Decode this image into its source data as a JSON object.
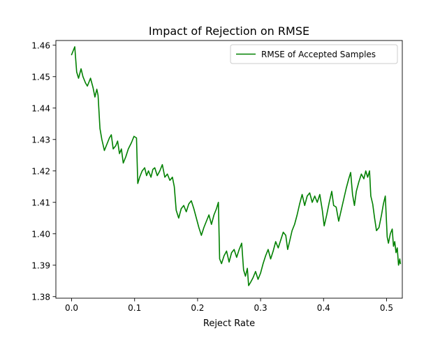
{
  "chart_data": {
    "type": "line",
    "title": "Impact of Rejection on RMSE",
    "xlabel": "Reject Rate",
    "ylabel": "",
    "xlim": [
      -0.025,
      0.525
    ],
    "ylim": [
      1.3795,
      1.4615
    ],
    "grid": false,
    "legend_position": "top-right",
    "x_ticks": [
      0.0,
      0.1,
      0.2,
      0.3,
      0.4,
      0.5
    ],
    "x_tick_labels": [
      "0.0",
      "0.1",
      "0.2",
      "0.3",
      "0.4",
      "0.5"
    ],
    "y_ticks": [
      1.38,
      1.39,
      1.4,
      1.41,
      1.42,
      1.43,
      1.44,
      1.45,
      1.46
    ],
    "y_tick_labels": [
      "1.38",
      "1.39",
      "1.40",
      "1.41",
      "1.42",
      "1.43",
      "1.44",
      "1.45",
      "1.46"
    ],
    "series": [
      {
        "name": "RMSE of Accepted Samples",
        "color": "#008000",
        "points": [
          [
            0.0,
            1.457
          ],
          [
            0.005,
            1.4595
          ],
          [
            0.008,
            1.4515
          ],
          [
            0.011,
            1.4495
          ],
          [
            0.015,
            1.4525
          ],
          [
            0.018,
            1.45
          ],
          [
            0.022,
            1.448
          ],
          [
            0.025,
            1.447
          ],
          [
            0.03,
            1.4495
          ],
          [
            0.034,
            1.4465
          ],
          [
            0.037,
            1.4435
          ],
          [
            0.04,
            1.446
          ],
          [
            0.042,
            1.444
          ],
          [
            0.045,
            1.4335
          ],
          [
            0.048,
            1.43
          ],
          [
            0.052,
            1.4265
          ],
          [
            0.056,
            1.4285
          ],
          [
            0.06,
            1.4305
          ],
          [
            0.063,
            1.4315
          ],
          [
            0.066,
            1.427
          ],
          [
            0.07,
            1.428
          ],
          [
            0.073,
            1.4295
          ],
          [
            0.076,
            1.4255
          ],
          [
            0.079,
            1.427
          ],
          [
            0.082,
            1.4225
          ],
          [
            0.086,
            1.4245
          ],
          [
            0.09,
            1.427
          ],
          [
            0.095,
            1.429
          ],
          [
            0.099,
            1.431
          ],
          [
            0.103,
            1.4305
          ],
          [
            0.105,
            1.416
          ],
          [
            0.108,
            1.418
          ],
          [
            0.112,
            1.42
          ],
          [
            0.116,
            1.421
          ],
          [
            0.119,
            1.4185
          ],
          [
            0.122,
            1.42
          ],
          [
            0.126,
            1.418
          ],
          [
            0.129,
            1.4205
          ],
          [
            0.132,
            1.421
          ],
          [
            0.136,
            1.4185
          ],
          [
            0.14,
            1.42
          ],
          [
            0.144,
            1.422
          ],
          [
            0.148,
            1.418
          ],
          [
            0.152,
            1.419
          ],
          [
            0.156,
            1.417
          ],
          [
            0.16,
            1.418
          ],
          [
            0.163,
            1.415
          ],
          [
            0.166,
            1.4075
          ],
          [
            0.17,
            1.405
          ],
          [
            0.174,
            1.408
          ],
          [
            0.178,
            1.409
          ],
          [
            0.182,
            1.407
          ],
          [
            0.186,
            1.4095
          ],
          [
            0.19,
            1.4105
          ],
          [
            0.194,
            1.408
          ],
          [
            0.198,
            1.405
          ],
          [
            0.202,
            1.402
          ],
          [
            0.206,
            1.3995
          ],
          [
            0.21,
            1.402
          ],
          [
            0.214,
            1.404
          ],
          [
            0.218,
            1.406
          ],
          [
            0.222,
            1.403
          ],
          [
            0.226,
            1.406
          ],
          [
            0.23,
            1.408
          ],
          [
            0.233,
            1.41
          ],
          [
            0.235,
            1.392
          ],
          [
            0.238,
            1.3905
          ],
          [
            0.242,
            1.393
          ],
          [
            0.246,
            1.3945
          ],
          [
            0.25,
            1.391
          ],
          [
            0.254,
            1.394
          ],
          [
            0.258,
            1.395
          ],
          [
            0.262,
            1.3925
          ],
          [
            0.266,
            1.395
          ],
          [
            0.27,
            1.397
          ],
          [
            0.273,
            1.3885
          ],
          [
            0.276,
            1.3865
          ],
          [
            0.279,
            1.389
          ],
          [
            0.281,
            1.3835
          ],
          [
            0.284,
            1.3845
          ],
          [
            0.288,
            1.386
          ],
          [
            0.292,
            1.388
          ],
          [
            0.296,
            1.3855
          ],
          [
            0.3,
            1.3875
          ],
          [
            0.304,
            1.3905
          ],
          [
            0.308,
            1.393
          ],
          [
            0.312,
            1.395
          ],
          [
            0.316,
            1.392
          ],
          [
            0.32,
            1.3945
          ],
          [
            0.324,
            1.3975
          ],
          [
            0.328,
            1.3955
          ],
          [
            0.332,
            1.398
          ],
          [
            0.336,
            1.4005
          ],
          [
            0.34,
            1.3995
          ],
          [
            0.343,
            1.395
          ],
          [
            0.346,
            1.3975
          ],
          [
            0.35,
            1.401
          ],
          [
            0.354,
            1.403
          ],
          [
            0.358,
            1.406
          ],
          [
            0.362,
            1.4095
          ],
          [
            0.366,
            1.4125
          ],
          [
            0.37,
            1.409
          ],
          [
            0.374,
            1.412
          ],
          [
            0.378,
            1.413
          ],
          [
            0.382,
            1.41
          ],
          [
            0.386,
            1.412
          ],
          [
            0.39,
            1.41
          ],
          [
            0.394,
            1.4125
          ],
          [
            0.398,
            1.4075
          ],
          [
            0.401,
            1.4025
          ],
          [
            0.405,
            1.406
          ],
          [
            0.409,
            1.41
          ],
          [
            0.413,
            1.4135
          ],
          [
            0.416,
            1.409
          ],
          [
            0.42,
            1.4085
          ],
          [
            0.424,
            1.404
          ],
          [
            0.428,
            1.4075
          ],
          [
            0.432,
            1.411
          ],
          [
            0.436,
            1.4145
          ],
          [
            0.44,
            1.4175
          ],
          [
            0.443,
            1.4195
          ],
          [
            0.446,
            1.4125
          ],
          [
            0.449,
            1.409
          ],
          [
            0.452,
            1.4135
          ],
          [
            0.456,
            1.4165
          ],
          [
            0.46,
            1.419
          ],
          [
            0.464,
            1.4175
          ],
          [
            0.467,
            1.42
          ],
          [
            0.47,
            1.418
          ],
          [
            0.473,
            1.42
          ],
          [
            0.475,
            1.412
          ],
          [
            0.478,
            1.4095
          ],
          [
            0.481,
            1.405
          ],
          [
            0.484,
            1.401
          ],
          [
            0.488,
            1.402
          ],
          [
            0.492,
            1.406
          ],
          [
            0.495,
            1.4095
          ],
          [
            0.498,
            1.412
          ],
          [
            0.501,
            1.399
          ],
          [
            0.503,
            1.397
          ],
          [
            0.506,
            1.4
          ],
          [
            0.509,
            1.4015
          ],
          [
            0.511,
            1.396
          ],
          [
            0.513,
            1.3975
          ],
          [
            0.515,
            1.394
          ],
          [
            0.517,
            1.3955
          ],
          [
            0.519,
            1.39
          ],
          [
            0.521,
            1.392
          ],
          [
            0.522,
            1.3905
          ]
        ]
      }
    ]
  }
}
